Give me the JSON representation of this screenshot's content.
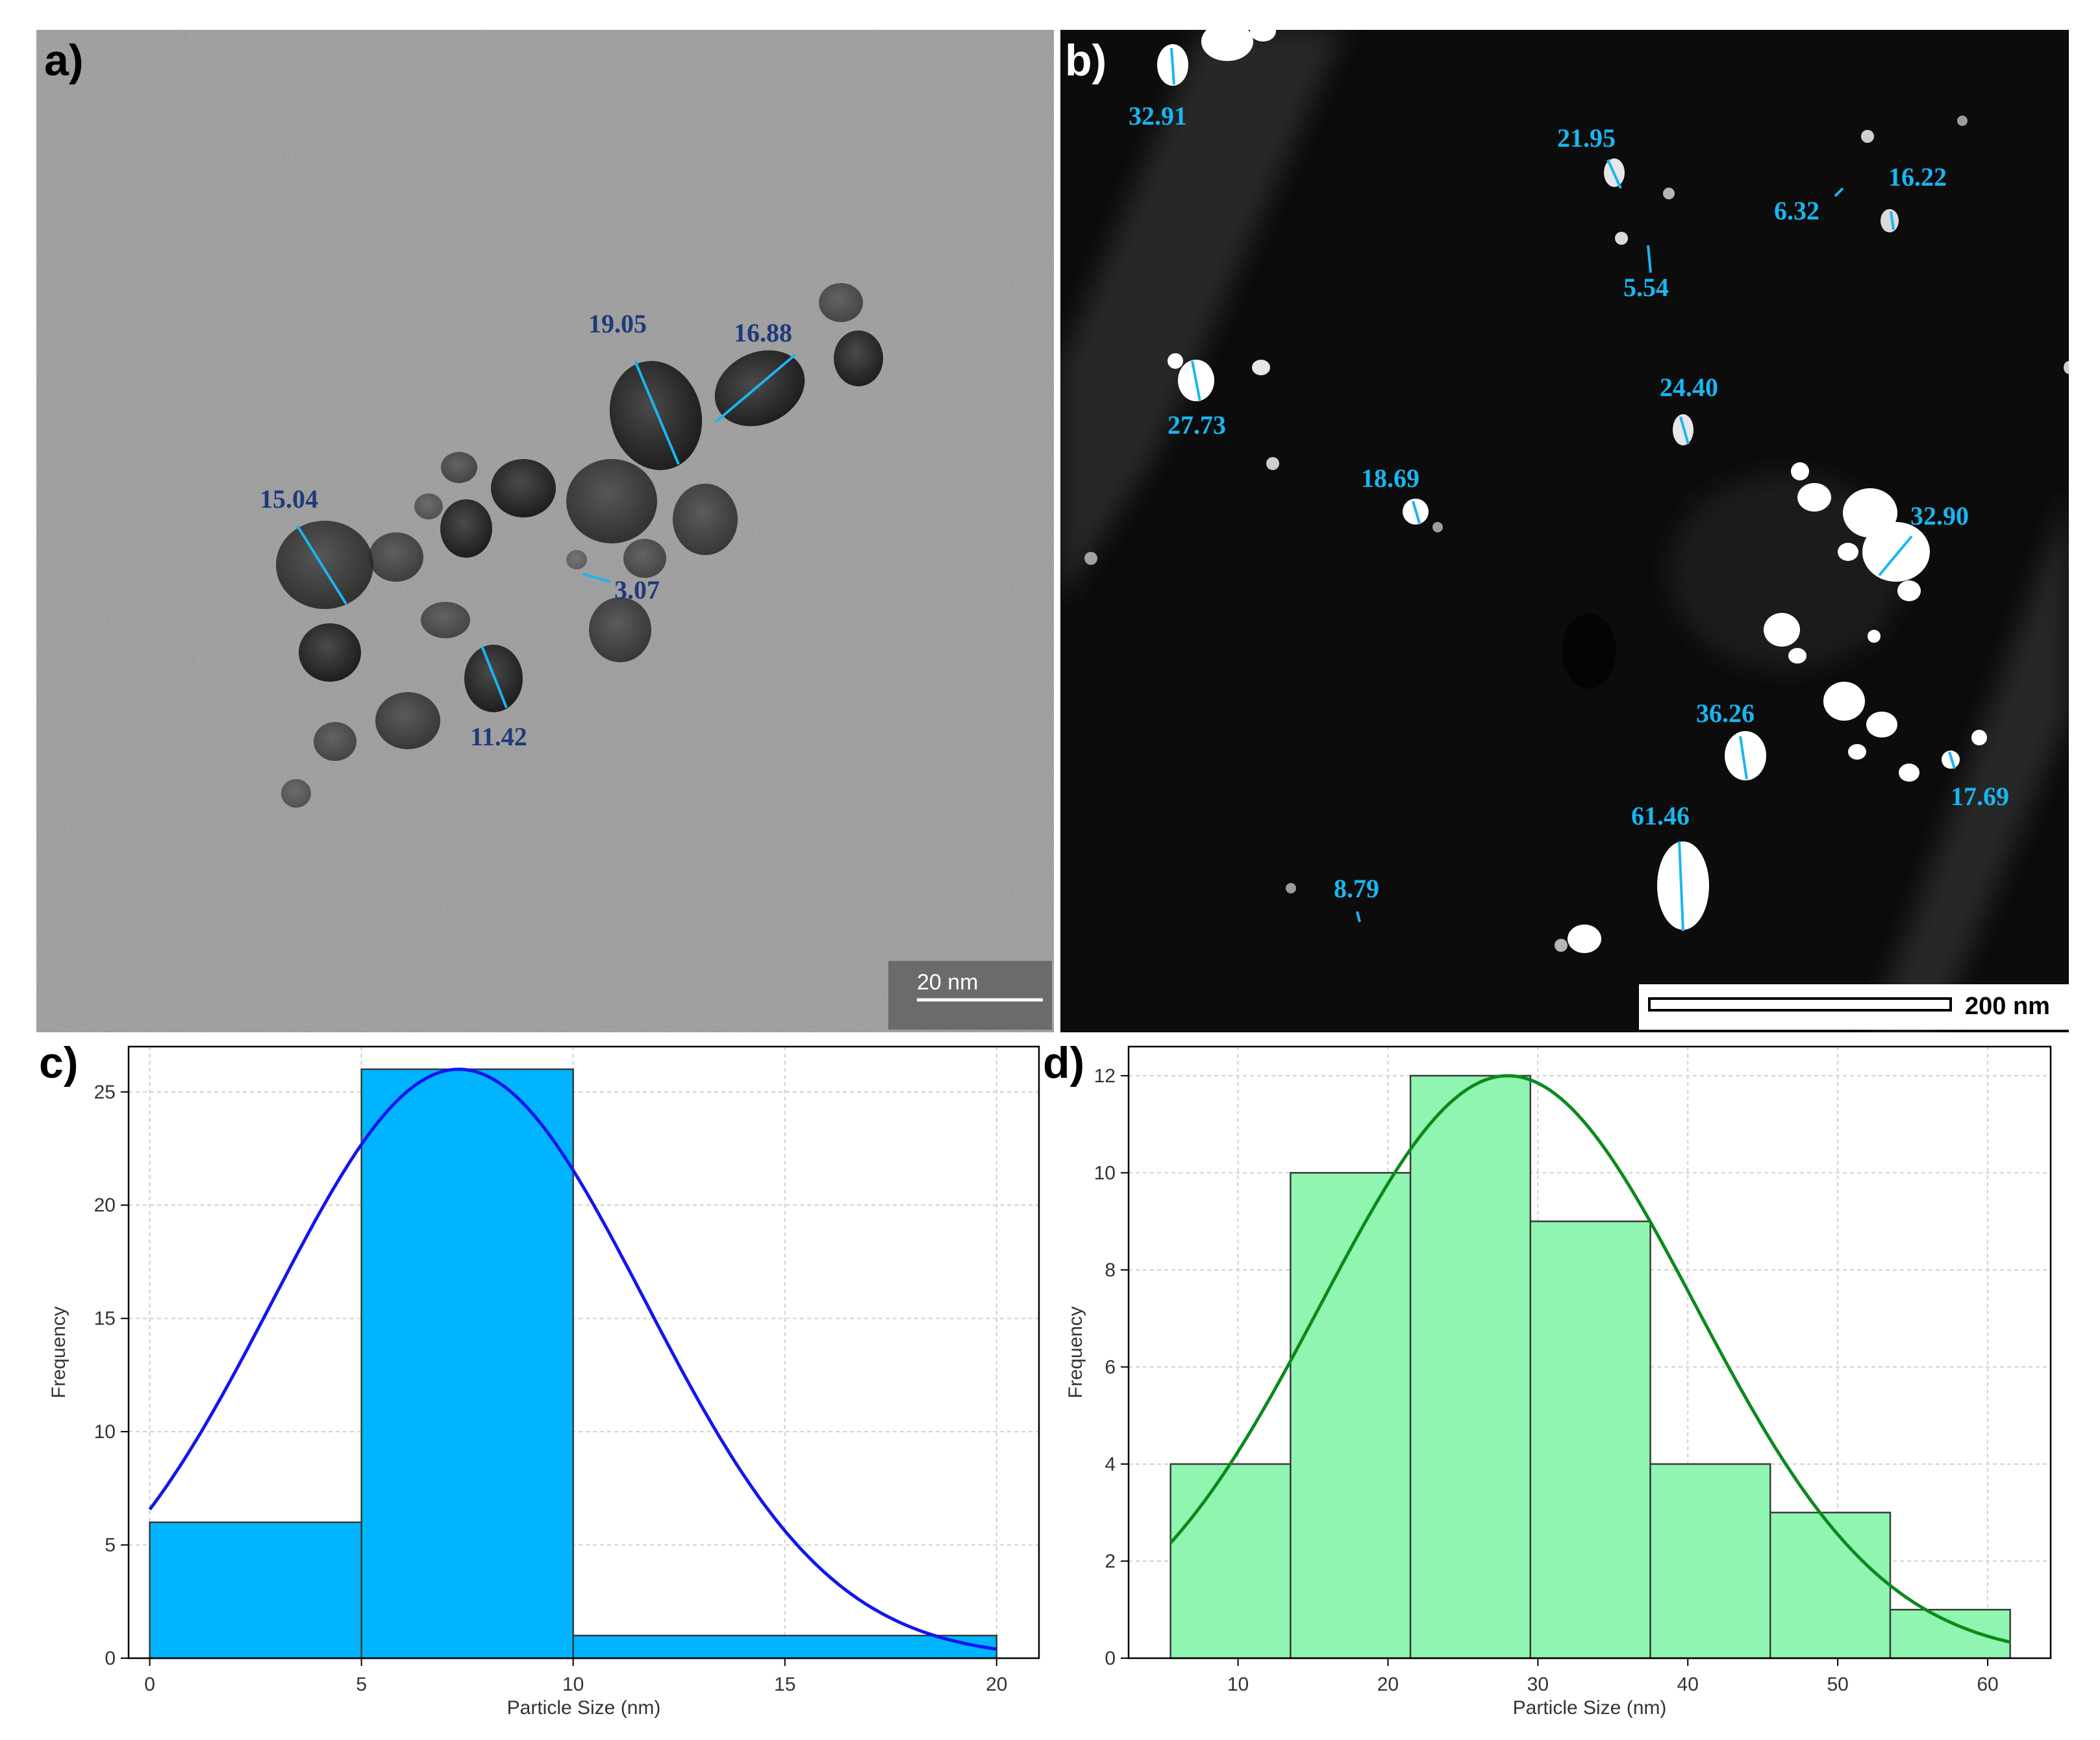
{
  "panels": {
    "a": {
      "label": "a)",
      "scale_bar": "20 nm",
      "measurements": [
        "19.05",
        "16.88",
        "15.04",
        "3.07",
        "11.42"
      ]
    },
    "b": {
      "label": "b)",
      "scale_bar": "200 nm",
      "measurements": [
        "32.91",
        "21.95",
        "16.22",
        "6.32",
        "5.54",
        "27.73",
        "24.40",
        "18.69",
        "32.90",
        "36.26",
        "17.69",
        "61.46",
        "8.79"
      ]
    },
    "c": {
      "label": "c)"
    },
    "d": {
      "label": "d)"
    }
  },
  "colors": {
    "tem_background": "#9b9b9b",
    "particle_dark": "#2e2e2e",
    "tem_label": "#1f3a7a",
    "stem_background": "#0c0c0c",
    "stem_label": "#19b6f0",
    "measure_line": "#19b6f0",
    "hist_c_fill": "#00b4ff",
    "hist_c_curve": "#1515ee",
    "hist_d_fill": "#90f5b0",
    "hist_d_curve": "#0b8a1b"
  },
  "chart_data": [
    {
      "id": "c",
      "type": "bar",
      "xlabel": "Particle Size (nm)",
      "ylabel": "Frequency",
      "bins": [
        [
          0,
          5
        ],
        [
          5,
          10
        ],
        [
          10,
          20
        ]
      ],
      "values": [
        6,
        26,
        1
      ],
      "xlim": [
        -0.5,
        21
      ],
      "ylim": [
        0,
        27
      ],
      "xticks": [
        0,
        5,
        10,
        15,
        20
      ],
      "yticks": [
        0,
        5,
        10,
        15,
        20,
        25
      ],
      "curve": {
        "type": "gaussian",
        "mean": 7.3,
        "sd": 4.4,
        "peak": 26,
        "x_range": [
          0,
          20
        ]
      },
      "grid": true
    },
    {
      "id": "d",
      "type": "bar",
      "xlabel": "Particle Size (nm)",
      "ylabel": "Frequency",
      "bins": [
        [
          5.5,
          13.5
        ],
        [
          13.5,
          21.5
        ],
        [
          21.5,
          29.5
        ],
        [
          29.5,
          37.5
        ],
        [
          37.5,
          45.5
        ],
        [
          45.5,
          53.5
        ],
        [
          53.5,
          61.5
        ]
      ],
      "values": [
        4,
        10,
        12,
        9,
        4,
        3,
        1
      ],
      "xlim": [
        2.7,
        64.2
      ],
      "ylim": [
        0,
        12.6
      ],
      "xticks": [
        10,
        20,
        30,
        40,
        50,
        60
      ],
      "yticks": [
        0,
        2,
        4,
        6,
        8,
        10,
        12
      ],
      "curve": {
        "type": "gaussian",
        "mean": 28,
        "sd": 12.5,
        "peak": 12,
        "x_range": [
          5.5,
          61.5
        ]
      },
      "grid": true
    }
  ]
}
